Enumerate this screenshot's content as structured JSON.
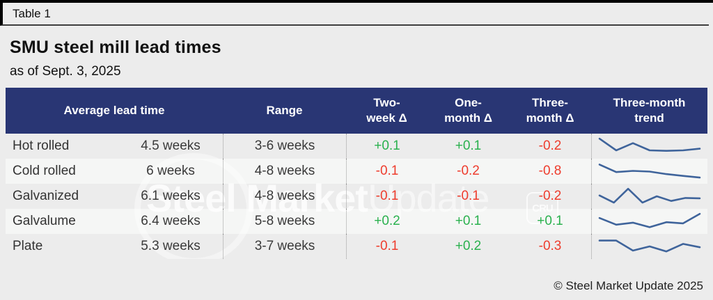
{
  "header": {
    "table_label": "Table 1",
    "title": "SMU steel mill lead times",
    "subtitle": "as of Sept. 3, 2025"
  },
  "footer": {
    "copyright": "© Steel Market Update 2025"
  },
  "watermark": {
    "text_bold": "Steel Market",
    "text_light": "Update",
    "badge": "CRU"
  },
  "colors": {
    "page_bg": "#ececec",
    "row_alt": "#f5f6f5",
    "header_bg": "#293674",
    "header_text": "#ffffff",
    "positive": "#2ab14e",
    "negative": "#ee3c2d",
    "sparkline": "#3f649b"
  },
  "chart_data": {
    "type": "table",
    "title": "SMU steel mill lead times",
    "as_of": "as of Sept. 3, 2025",
    "columns": [
      {
        "label": "Average lead time"
      },
      {
        "label": "Range"
      },
      {
        "line1": "Two-",
        "line2": "week Δ"
      },
      {
        "line1": "One-",
        "line2": "month Δ"
      },
      {
        "line1": "Three-",
        "line2": "month Δ"
      },
      {
        "line1": "Three-month",
        "line2": "trend"
      }
    ],
    "rows": [
      {
        "product": "Hot rolled",
        "avg": "4.5 weeks",
        "range": "3-6 weeks",
        "two_week": "+0.1",
        "one_month": "+0.1",
        "three_month": "-0.2",
        "trend": [
          0.95,
          0.25,
          0.68,
          0.25,
          0.22,
          0.25,
          0.35
        ]
      },
      {
        "product": "Cold rolled",
        "avg": "6 weeks",
        "range": "4-8 weeks",
        "two_week": "-0.1",
        "one_month": "-0.2",
        "three_month": "-0.8",
        "trend": [
          0.9,
          0.45,
          0.52,
          0.48,
          0.33,
          0.22,
          0.12
        ]
      },
      {
        "product": "Galvanized",
        "avg": "6.1 weeks",
        "range": "4-8 weeks",
        "two_week": "-0.1",
        "one_month": "-0.1",
        "three_month": "-0.2",
        "trend": [
          0.55,
          0.12,
          0.95,
          0.12,
          0.5,
          0.22,
          0.4,
          0.38
        ]
      },
      {
        "product": "Galvalume",
        "avg": "6.4 weeks",
        "range": "5-8 weeks",
        "two_week": "+0.2",
        "one_month": "+0.1",
        "three_month": "+0.1",
        "trend": [
          0.7,
          0.3,
          0.42,
          0.15,
          0.45,
          0.38,
          0.95
        ]
      },
      {
        "product": "Plate",
        "avg": "5.3 weeks",
        "range": "3-7 weeks",
        "two_week": "-0.1",
        "one_month": "+0.2",
        "three_month": "-0.3",
        "trend": [
          0.85,
          0.85,
          0.25,
          0.5,
          0.2,
          0.65,
          0.45
        ]
      }
    ]
  }
}
